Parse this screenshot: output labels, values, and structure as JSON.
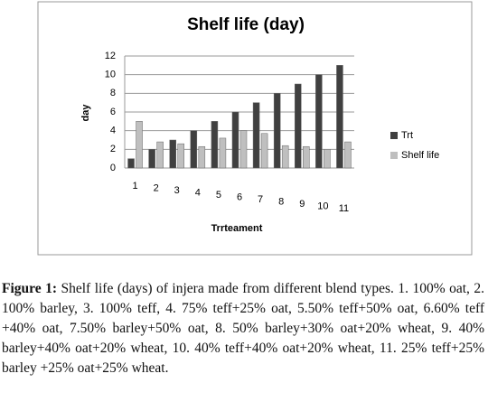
{
  "chart_data": {
    "type": "bar",
    "title": "Shelf life (day)",
    "x_label": "Trrteament",
    "y_label": "day",
    "categories": [
      "1",
      "2",
      "3",
      "4",
      "5",
      "6",
      "7",
      "8",
      "9",
      "10",
      "11"
    ],
    "series": [
      {
        "name": "Trt",
        "color": "#404040",
        "values": [
          1,
          2,
          3,
          4,
          5,
          6,
          7,
          8,
          9,
          10,
          11
        ]
      },
      {
        "name": "Shelf life",
        "color": "#bfbfbf",
        "values": [
          5,
          2.8,
          2.6,
          2.3,
          3.2,
          4,
          3.7,
          2.4,
          2.3,
          2,
          2.8
        ]
      }
    ],
    "ylim": [
      0,
      12
    ],
    "yticks": [
      0,
      2,
      4,
      6,
      8,
      10,
      12
    ],
    "grid": true,
    "legend": "right"
  },
  "caption": {
    "label": "Figure 1:",
    "text": "Shelf life (days) of injera made from different blend types. 1. 100% oat, 2. 100% barley, 3. 100% teff, 4. 75% teff+25% oat, 5.50% teff+50% oat, 6.60% teff +40% oat, 7.50% barley+50% oat, 8. 50% barley+30% oat+20% wheat, 9. 40% barley+40% oat+20% wheat, 10. 40% teff+40% oat+20% wheat, 11. 25% teff+25% barley +25% oat+25% wheat."
  }
}
